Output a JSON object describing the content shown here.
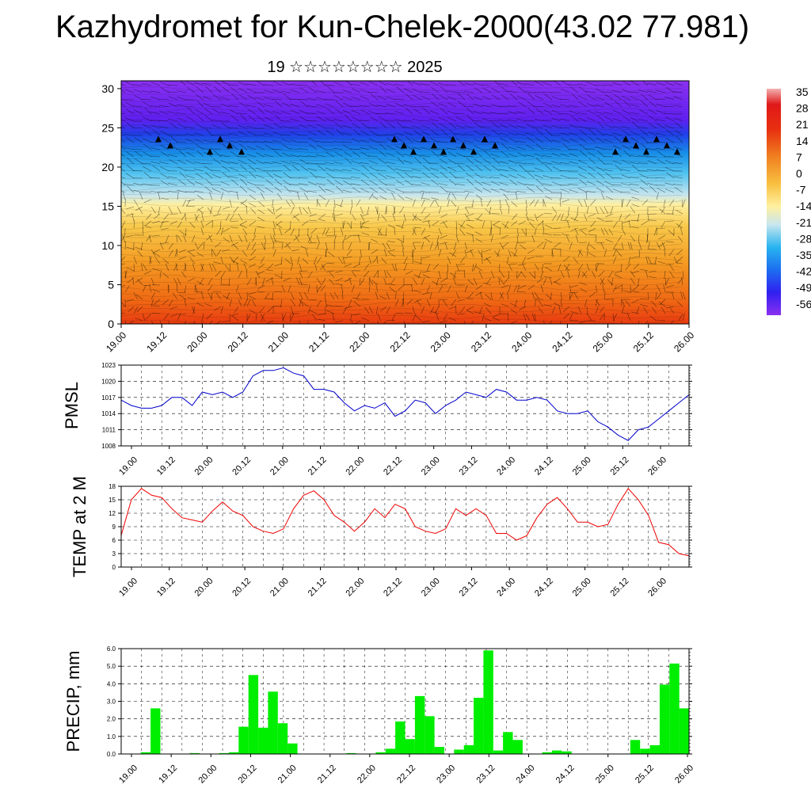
{
  "title": "Kazhydromet for Kun-Chelek-2000(43.02 77.981)",
  "subtitle": "19 ☆☆☆☆☆☆☆☆ 2025",
  "time_ticks": [
    "19.00",
    "19.12",
    "20.00",
    "20.12",
    "21.00",
    "21.12",
    "22.00",
    "22.12",
    "23.00",
    "23.12",
    "24.00",
    "24.12",
    "25.00",
    "25.12",
    "26.00"
  ],
  "chart_data": [
    {
      "type": "heatmap",
      "name": "temperature-wind-cross-section",
      "x_ticks": [
        "19.00",
        "19.12",
        "20.00",
        "20.12",
        "21.00",
        "21.12",
        "22.00",
        "22.12",
        "23.00",
        "23.12",
        "24.00",
        "24.12",
        "25.00",
        "25.12",
        "26.00"
      ],
      "y_ticks": [
        0,
        5,
        10,
        15,
        20,
        25,
        30
      ],
      "ylim": [
        0,
        31
      ],
      "colorbar": {
        "labels": [
          "35",
          "28",
          "21",
          "14",
          "7",
          "0",
          "-7",
          "-14",
          "-21",
          "-28",
          "-35",
          "-42",
          "-49",
          "-56"
        ],
        "colors": [
          "#f08a8a",
          "#ee2020",
          "#e81010",
          "#f06010",
          "#f8a020",
          "#f8d050",
          "#fff2a0",
          "#c8e8f0",
          "#40c0f0",
          "#10a0e8",
          "#2060f0",
          "#3020f0",
          "#6020f0",
          "#8030f0"
        ]
      }
    },
    {
      "type": "line",
      "name": "PMSL",
      "ylabel": "PMSL",
      "y_ticks": [
        1008,
        1011,
        1014,
        1017,
        1020,
        1023
      ],
      "ylim": [
        1008,
        1023
      ],
      "color": "#0000cc",
      "x_ticks": [
        "19.00",
        "19.12",
        "20.00",
        "20.12",
        "21.00",
        "21.12",
        "22.00",
        "22.12",
        "23.00",
        "23.12",
        "24.00",
        "24.12",
        "25.00",
        "25.12",
        "26.00"
      ],
      "values": [
        1016.5,
        1015.5,
        1015,
        1015,
        1015.5,
        1017,
        1017,
        1015.5,
        1018,
        1017.5,
        1018,
        1017,
        1018,
        1021,
        1022,
        1022,
        1022.5,
        1021.5,
        1021,
        1018.5,
        1018.5,
        1018,
        1016,
        1014.5,
        1015.5,
        1015,
        1016,
        1013.5,
        1014.5,
        1016.5,
        1016,
        1014,
        1015.5,
        1016.5,
        1018,
        1017.5,
        1017,
        1018.5,
        1018,
        1016.5,
        1016.5,
        1017,
        1016.5,
        1014.5,
        1014,
        1014,
        1014.5,
        1012.5,
        1011.5,
        1010,
        1009,
        1011,
        1011.5,
        1013,
        1014.5,
        1016,
        1017.5
      ]
    },
    {
      "type": "line",
      "name": "TEMP",
      "ylabel": "TEMP at 2 M",
      "y_ticks": [
        0,
        3,
        6,
        9,
        12,
        15,
        18
      ],
      "ylim": [
        0,
        18
      ],
      "color": "#ee0000",
      "x_ticks": [
        "19.00",
        "19.12",
        "20.00",
        "20.12",
        "21.00",
        "21.12",
        "22.00",
        "22.12",
        "23.00",
        "23.12",
        "24.00",
        "24.12",
        "25.00",
        "25.12",
        "26.00"
      ],
      "values": [
        7,
        15,
        17.5,
        16,
        15.5,
        13,
        11,
        10.5,
        10,
        12.5,
        14.5,
        12.5,
        11.5,
        9,
        8,
        7.5,
        8.5,
        13,
        16,
        17,
        15,
        11.5,
        10,
        8,
        10,
        13,
        11,
        14,
        13,
        9,
        8,
        7.5,
        8.5,
        13,
        11.5,
        13,
        11.5,
        7.5,
        7.5,
        6,
        7,
        11,
        14,
        15.5,
        13,
        10,
        10,
        9,
        9.5,
        14,
        17.5,
        15,
        11.5,
        5.5,
        5,
        3,
        2.5
      ]
    },
    {
      "type": "bar",
      "name": "PRECIP",
      "ylabel": "PRECIP, mm",
      "y_ticks": [
        "0.0",
        "1.0",
        "2.0",
        "3.0",
        "4.0",
        "5.0",
        "6.0"
      ],
      "ylim": [
        0,
        6
      ],
      "color": "#00ee00",
      "x_ticks": [
        "19.00",
        "19.12",
        "20.00",
        "20.12",
        "21.00",
        "21.12",
        "22.00",
        "22.12",
        "23.00",
        "23.12",
        "24.00",
        "24.12",
        "25.00",
        "25.12",
        "26.00"
      ],
      "values": [
        0,
        0,
        0.1,
        2.6,
        0,
        0,
        0,
        0.05,
        0,
        0,
        0.05,
        0.1,
        1.55,
        4.5,
        1.5,
        3.55,
        1.75,
        0.6,
        0,
        0,
        0,
        0,
        0,
        0.05,
        0,
        0,
        0.1,
        0.3,
        1.85,
        0.85,
        3.3,
        2.15,
        0.4,
        0,
        0.25,
        0.5,
        3.2,
        5.9,
        0.2,
        1.25,
        0.8,
        0,
        0,
        0.1,
        0.2,
        0.15,
        0,
        0,
        0,
        0,
        0,
        0,
        0.8,
        0.3,
        0.5,
        3.95,
        5.15,
        2.6
      ]
    }
  ]
}
